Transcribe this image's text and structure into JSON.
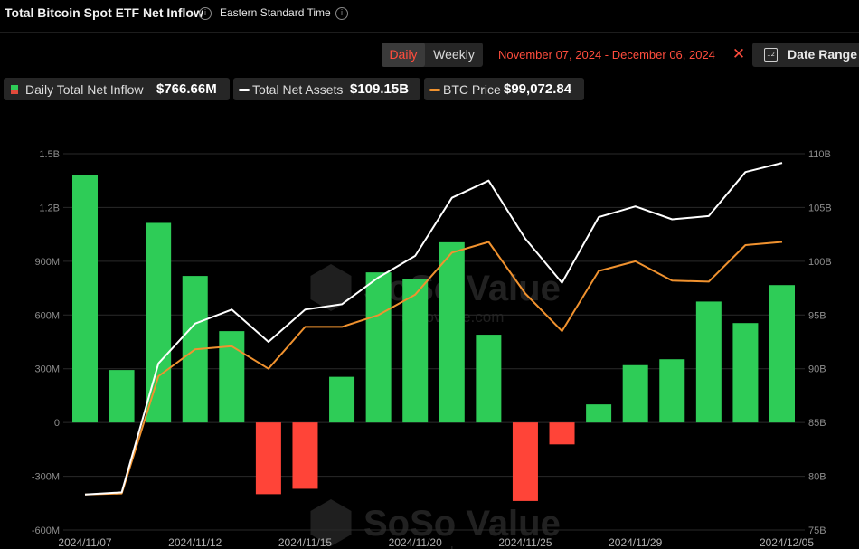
{
  "header": {
    "title": "Total Bitcoin Spot ETF Net Inflow",
    "timezone": "Eastern Standard Time"
  },
  "toolbar": {
    "daily_label": "Daily",
    "weekly_label": "Weekly",
    "date_range": "November 07, 2024 - December 06, 2024",
    "date_range_button": "Date Range",
    "calendar_day": "12",
    "clear_icon": "close-icon"
  },
  "legend": {
    "inflow_label": "Daily Total Net Inflow",
    "inflow_value": "$766.66M",
    "assets_label": "Total Net Assets",
    "assets_value": "$109.15B",
    "btc_label": "BTC Price",
    "btc_value": "$99,072.84"
  },
  "colors": {
    "positive": "#2ecc57",
    "negative": "#ff4438",
    "assets_line": "#ffffff",
    "btc_line": "#f0922f",
    "accent": "#ff4d3d"
  },
  "watermark": {
    "brand": "SoSo Value",
    "site": "sosovalue.com"
  },
  "chart_data": {
    "type": "bar",
    "title": "Total Bitcoin Spot ETF Net Inflow",
    "x": [
      "2024/11/07",
      "2024/11/08",
      "2024/11/11",
      "2024/11/12",
      "2024/11/13",
      "2024/11/14",
      "2024/11/15",
      "2024/11/18",
      "2024/11/19",
      "2024/11/20",
      "2024/11/21",
      "2024/11/22",
      "2024/11/25",
      "2024/11/26",
      "2024/11/27",
      "2024/11/29",
      "2024/12/02",
      "2024/12/03",
      "2024/12/04",
      "2024/12/05"
    ],
    "x_tick_labels": [
      "2024/11/07",
      "2024/11/12",
      "2024/11/15",
      "2024/11/20",
      "2024/11/25",
      "2024/11/29",
      "2024/12/05"
    ],
    "series": [
      {
        "name": "Daily Total Net Inflow",
        "type": "bar",
        "axis": "left",
        "values": [
          1380,
          293,
          1114,
          818,
          510,
          -400,
          -370,
          255,
          838,
          800,
          1006,
          490,
          -438,
          -122,
          101,
          320,
          353,
          675,
          555,
          767
        ]
      },
      {
        "name": "Total Net Assets",
        "type": "line",
        "axis": "right",
        "values": [
          78.3,
          78.5,
          90.5,
          94.2,
          95.5,
          92.5,
          95.5,
          96.0,
          98.5,
          100.5,
          105.9,
          107.5,
          102.1,
          98.0,
          104.1,
          105.1,
          103.9,
          104.2,
          108.3,
          109.15
        ]
      },
      {
        "name": "BTC Price",
        "type": "line",
        "axis": "right",
        "values": [
          78.3,
          78.4,
          89.3,
          91.8,
          92.1,
          90.0,
          93.9,
          93.9,
          95.0,
          96.9,
          100.8,
          101.8,
          97.0,
          93.5,
          99.1,
          100.0,
          98.2,
          98.1,
          101.5,
          101.8
        ]
      }
    ],
    "y_left": {
      "ticks": [
        "1.5B",
        "1.2B",
        "900M",
        "600M",
        "300M",
        "0",
        "-300M",
        "-600M"
      ],
      "values": [
        1500,
        1200,
        900,
        600,
        300,
        0,
        -300,
        -600
      ],
      "ylim": [
        -600,
        1500
      ],
      "unit": "M"
    },
    "y_right": {
      "ticks": [
        "110B",
        "105B",
        "100B",
        "95B",
        "90B",
        "85B",
        "80B",
        "75B"
      ],
      "values": [
        110,
        105,
        100,
        95,
        90,
        85,
        80,
        75
      ],
      "ylim": [
        75,
        110
      ],
      "unit": "B"
    },
    "grid": true,
    "legend_position": "top-left"
  }
}
